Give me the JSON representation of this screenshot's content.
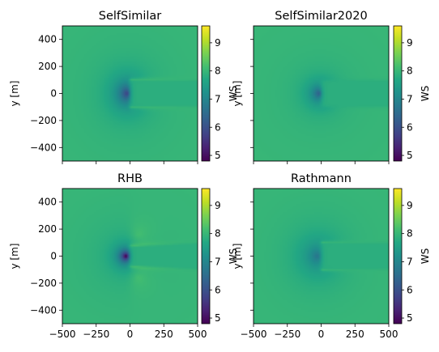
{
  "chart_data": [
    {
      "type": "heatmap",
      "title": "SelfSimilar",
      "model": "selfsimilar",
      "xlabel": "",
      "ylabel": "y [m]",
      "xlim": [
        -500,
        500
      ],
      "ylim": [
        -500,
        500
      ],
      "xticks": [],
      "yticks": [
        -400,
        -200,
        0,
        200,
        400
      ],
      "colorbar": {
        "label": "WS",
        "range": [
          4.8,
          9.6
        ],
        "ticks": [
          5,
          6,
          7,
          8,
          9
        ]
      },
      "values": {
        "freestream_ws": 8.0,
        "min_ws": 5.6,
        "max_ws": 9.0,
        "rotor_radius": 100
      }
    },
    {
      "type": "heatmap",
      "title": "SelfSimilar2020",
      "model": "selfsimilar2020",
      "xlabel": "",
      "ylabel": "y [m]",
      "xlim": [
        -500,
        500
      ],
      "ylim": [
        -500,
        500
      ],
      "xticks": [],
      "yticks": [],
      "colorbar": {
        "label": "WS",
        "range": [
          4.8,
          9.6
        ],
        "ticks": [
          5,
          6,
          7,
          8,
          9
        ]
      },
      "values": {
        "freestream_ws": 8.0,
        "min_ws": 5.9,
        "max_ws": 8.2,
        "rotor_radius": 100
      }
    },
    {
      "type": "heatmap",
      "title": "RHB",
      "model": "rhb",
      "xlabel": "",
      "ylabel": "y [m]",
      "xlim": [
        -500,
        500
      ],
      "ylim": [
        -500,
        500
      ],
      "xticks": [
        -500,
        -250,
        0,
        250,
        500
      ],
      "yticks": [
        -400,
        -200,
        0,
        200,
        400
      ],
      "colorbar": {
        "label": "WS",
        "range": [
          4.8,
          9.6
        ],
        "ticks": [
          5,
          6,
          7,
          8,
          9
        ]
      },
      "values": {
        "freestream_ws": 8.0,
        "min_ws": 4.8,
        "max_ws": 9.2,
        "rotor_radius": 100
      }
    },
    {
      "type": "heatmap",
      "title": "Rathmann",
      "model": "rathmann",
      "xlabel": "",
      "ylabel": "y [m]",
      "xlim": [
        -500,
        500
      ],
      "ylim": [
        -500,
        500
      ],
      "xticks": [
        -500,
        -250,
        0,
        250,
        500
      ],
      "yticks": [],
      "colorbar": {
        "label": "WS",
        "range": [
          4.8,
          9.6
        ],
        "ticks": [
          5,
          6,
          7,
          8,
          9
        ]
      },
      "values": {
        "freestream_ws": 8.0,
        "min_ws": 6.6,
        "max_ws": 8.9,
        "rotor_radius": 100
      }
    }
  ]
}
